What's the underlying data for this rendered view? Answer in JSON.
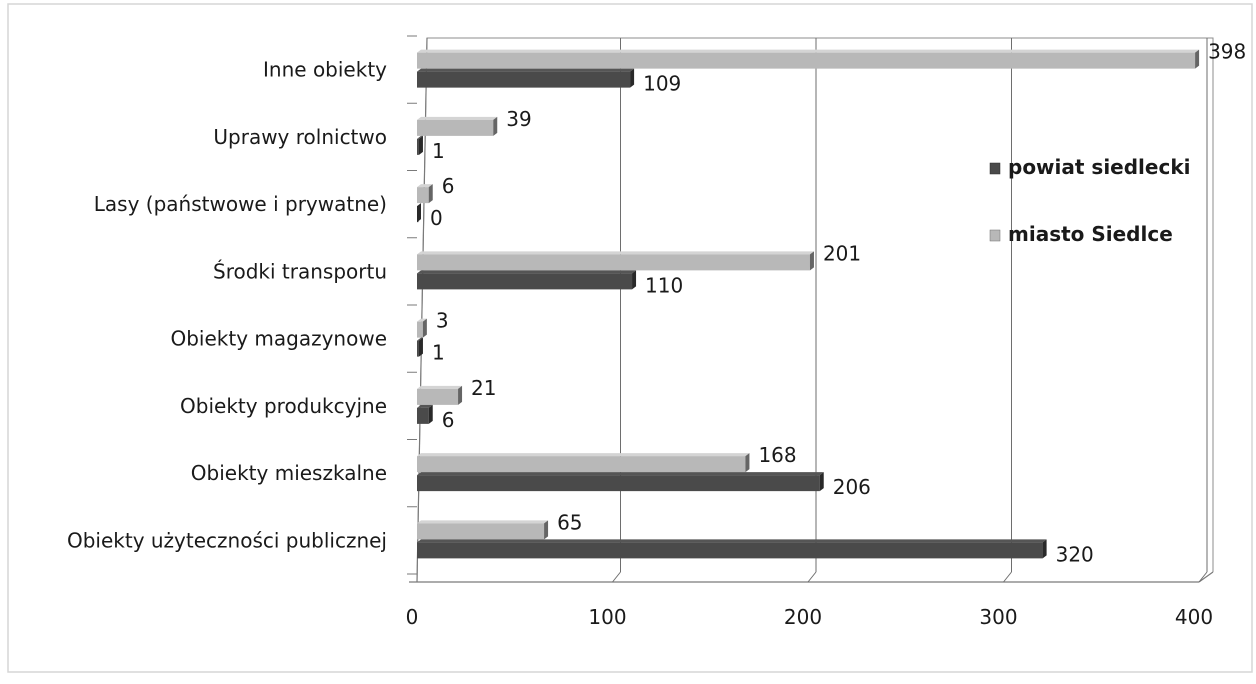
{
  "chart_data": {
    "type": "bar",
    "orientation": "horizontal",
    "title": "",
    "categories": [
      "Inne obiekty",
      "Uprawy rolnictwo",
      "Lasy (państwowe i prywatne)",
      "Środki transportu",
      "Obiekty magazynowe",
      "Obiekty produkcyjne",
      "Obiekty mieszkalne",
      "Obiekty użyteczności publicznej"
    ],
    "series": [
      {
        "name": "miasto Siedlce",
        "color": "#b8b8b8",
        "values": [
          398,
          39,
          6,
          201,
          3,
          21,
          168,
          65
        ]
      },
      {
        "name": "powiat siedlecki",
        "color": "#4a4a4a",
        "values": [
          109,
          1,
          0,
          110,
          1,
          6,
          206,
          320
        ]
      }
    ],
    "legend_order": [
      "powiat siedlecki",
      "miasto Siedlce"
    ],
    "legend_position": "right",
    "xlim": [
      0,
      400
    ],
    "x_ticks": [
      0,
      100,
      200,
      300,
      400
    ],
    "grid": true,
    "xlabel": "",
    "ylabel": ""
  }
}
